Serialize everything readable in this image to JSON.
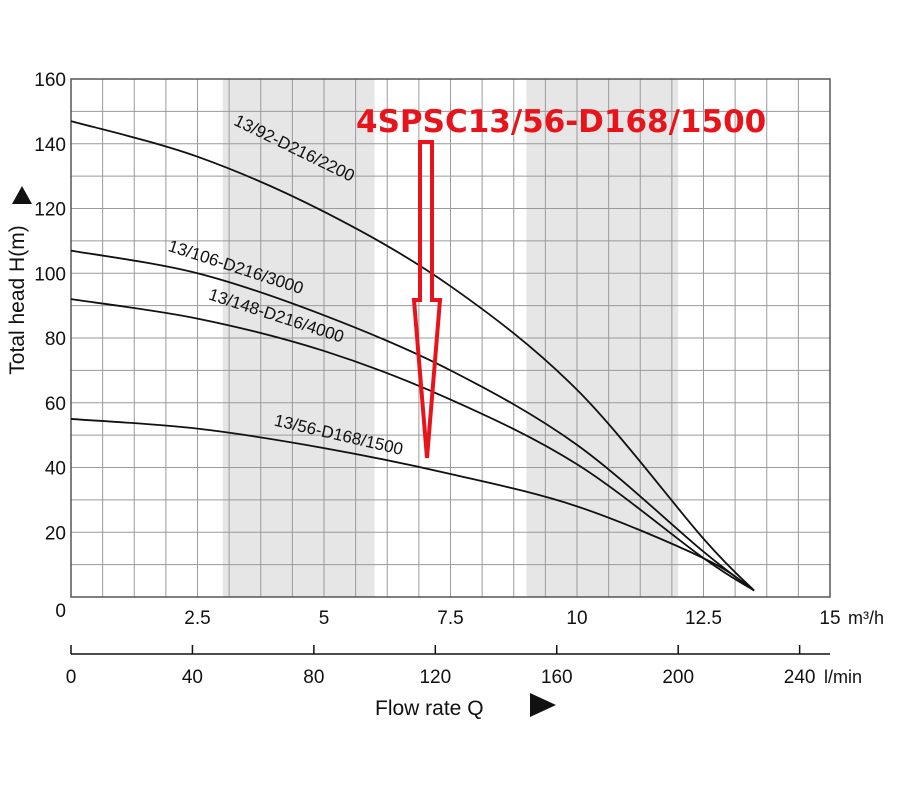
{
  "chart_data": {
    "type": "line",
    "ylabel": "Total head H(m)",
    "xlabel": "Flow rate Q",
    "x_unit_primary": "m³/h",
    "x_unit_secondary": "l/min",
    "ylim": [
      0,
      160
    ],
    "xlim": [
      0,
      15
    ],
    "y_ticks": [
      "0",
      "20",
      "40",
      "60",
      "80",
      "100",
      "120",
      "140",
      "160"
    ],
    "x_ticks_primary": [
      "2.5",
      "5",
      "7.5",
      "10",
      "12.5",
      "15"
    ],
    "x_ticks_secondary": [
      "0",
      "40",
      "80",
      "120",
      "160",
      "200",
      "240"
    ],
    "grid": true,
    "highlight_label": "4SPSC13/56-D168/1500",
    "arrow_color": "#e8141c",
    "series": [
      {
        "name": "13/92-D216/2200",
        "x": [
          0,
          2.5,
          5,
          7.5,
          10,
          12.5,
          13.5
        ],
        "y": [
          147,
          136,
          119,
          96,
          64,
          18,
          2
        ]
      },
      {
        "name": "13/106-D216/3000",
        "x": [
          0,
          2.5,
          5,
          7.5,
          10,
          12.5,
          13.5
        ],
        "y": [
          107,
          100,
          87,
          70,
          47,
          14,
          2
        ]
      },
      {
        "name": "13/148-D216/4000",
        "x": [
          0,
          2.5,
          5,
          7.5,
          10,
          12.5,
          13.5
        ],
        "y": [
          92,
          86,
          76,
          61,
          41,
          12,
          2
        ]
      },
      {
        "name": "13/56-D168/1500",
        "x": [
          0,
          2.5,
          5,
          7.5,
          10,
          12.5,
          13.5
        ],
        "y": [
          55,
          52,
          46,
          38,
          28,
          12,
          2
        ]
      }
    ]
  }
}
